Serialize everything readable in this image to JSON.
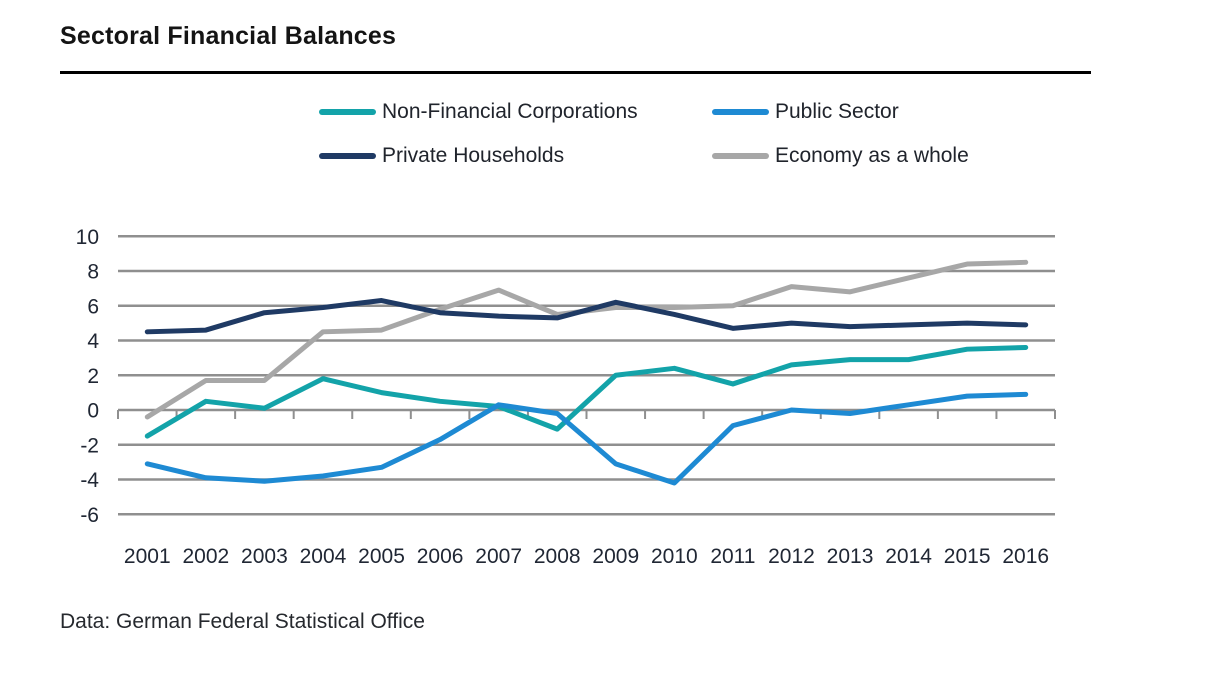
{
  "header": {
    "title": "Sectoral Financial Balances"
  },
  "legend": {
    "items": [
      {
        "label": "Non-Financial Corporations",
        "color": "#13a3a9"
      },
      {
        "label": "Public Sector",
        "color": "#1e8ad3"
      },
      {
        "label": "Private Households",
        "color": "#1f3a64"
      },
      {
        "label": "Economy as a whole",
        "color": "#a7a7a7"
      }
    ]
  },
  "chart_data": {
    "type": "line",
    "title": "Sectoral Financial Balances",
    "categories": [
      "2001",
      "2002",
      "2003",
      "2004",
      "2005",
      "2006",
      "2007",
      "2008",
      "2009",
      "2010",
      "2011",
      "2012",
      "2013",
      "2014",
      "2015",
      "2016"
    ],
    "series": [
      {
        "name": "Non-Financial Corporations",
        "color": "#13a3a9",
        "z": 2,
        "values": [
          -1.5,
          0.5,
          0.1,
          1.8,
          1.0,
          0.5,
          0.2,
          -1.1,
          2.0,
          2.4,
          1.5,
          2.6,
          2.9,
          2.9,
          3.5,
          3.6
        ]
      },
      {
        "name": "Public Sector",
        "color": "#1e8ad3",
        "z": 3,
        "values": [
          -3.1,
          -3.9,
          -4.1,
          -3.8,
          -3.3,
          -1.7,
          0.3,
          -0.2,
          -3.1,
          -4.2,
          -0.9,
          0.0,
          -0.2,
          0.3,
          0.8,
          0.9
        ]
      },
      {
        "name": "Private Households",
        "color": "#1f3a64",
        "z": 1,
        "values": [
          4.5,
          4.6,
          5.6,
          5.9,
          6.3,
          5.6,
          5.4,
          5.3,
          6.2,
          5.5,
          4.7,
          5.0,
          4.8,
          4.9,
          5.0,
          4.9
        ]
      },
      {
        "name": "Economy as a whole",
        "color": "#a7a7a7",
        "z": 0,
        "values": [
          -0.4,
          1.7,
          1.7,
          4.5,
          4.6,
          5.8,
          6.9,
          5.5,
          5.9,
          5.9,
          6.0,
          7.1,
          6.8,
          7.6,
          8.4,
          8.5
        ]
      }
    ],
    "y_ticks": [
      10,
      8,
      6,
      4,
      2,
      0,
      -2,
      -4,
      -6
    ],
    "ylim": [
      -6,
      10
    ],
    "xlabel": "",
    "ylabel": "",
    "grid": "horizontal",
    "legend_position": "top",
    "gridline_color": "#8f8f8f",
    "axis_label_color": "#202734"
  },
  "footer": {
    "caption": "Data: German Federal Statistical Office"
  }
}
